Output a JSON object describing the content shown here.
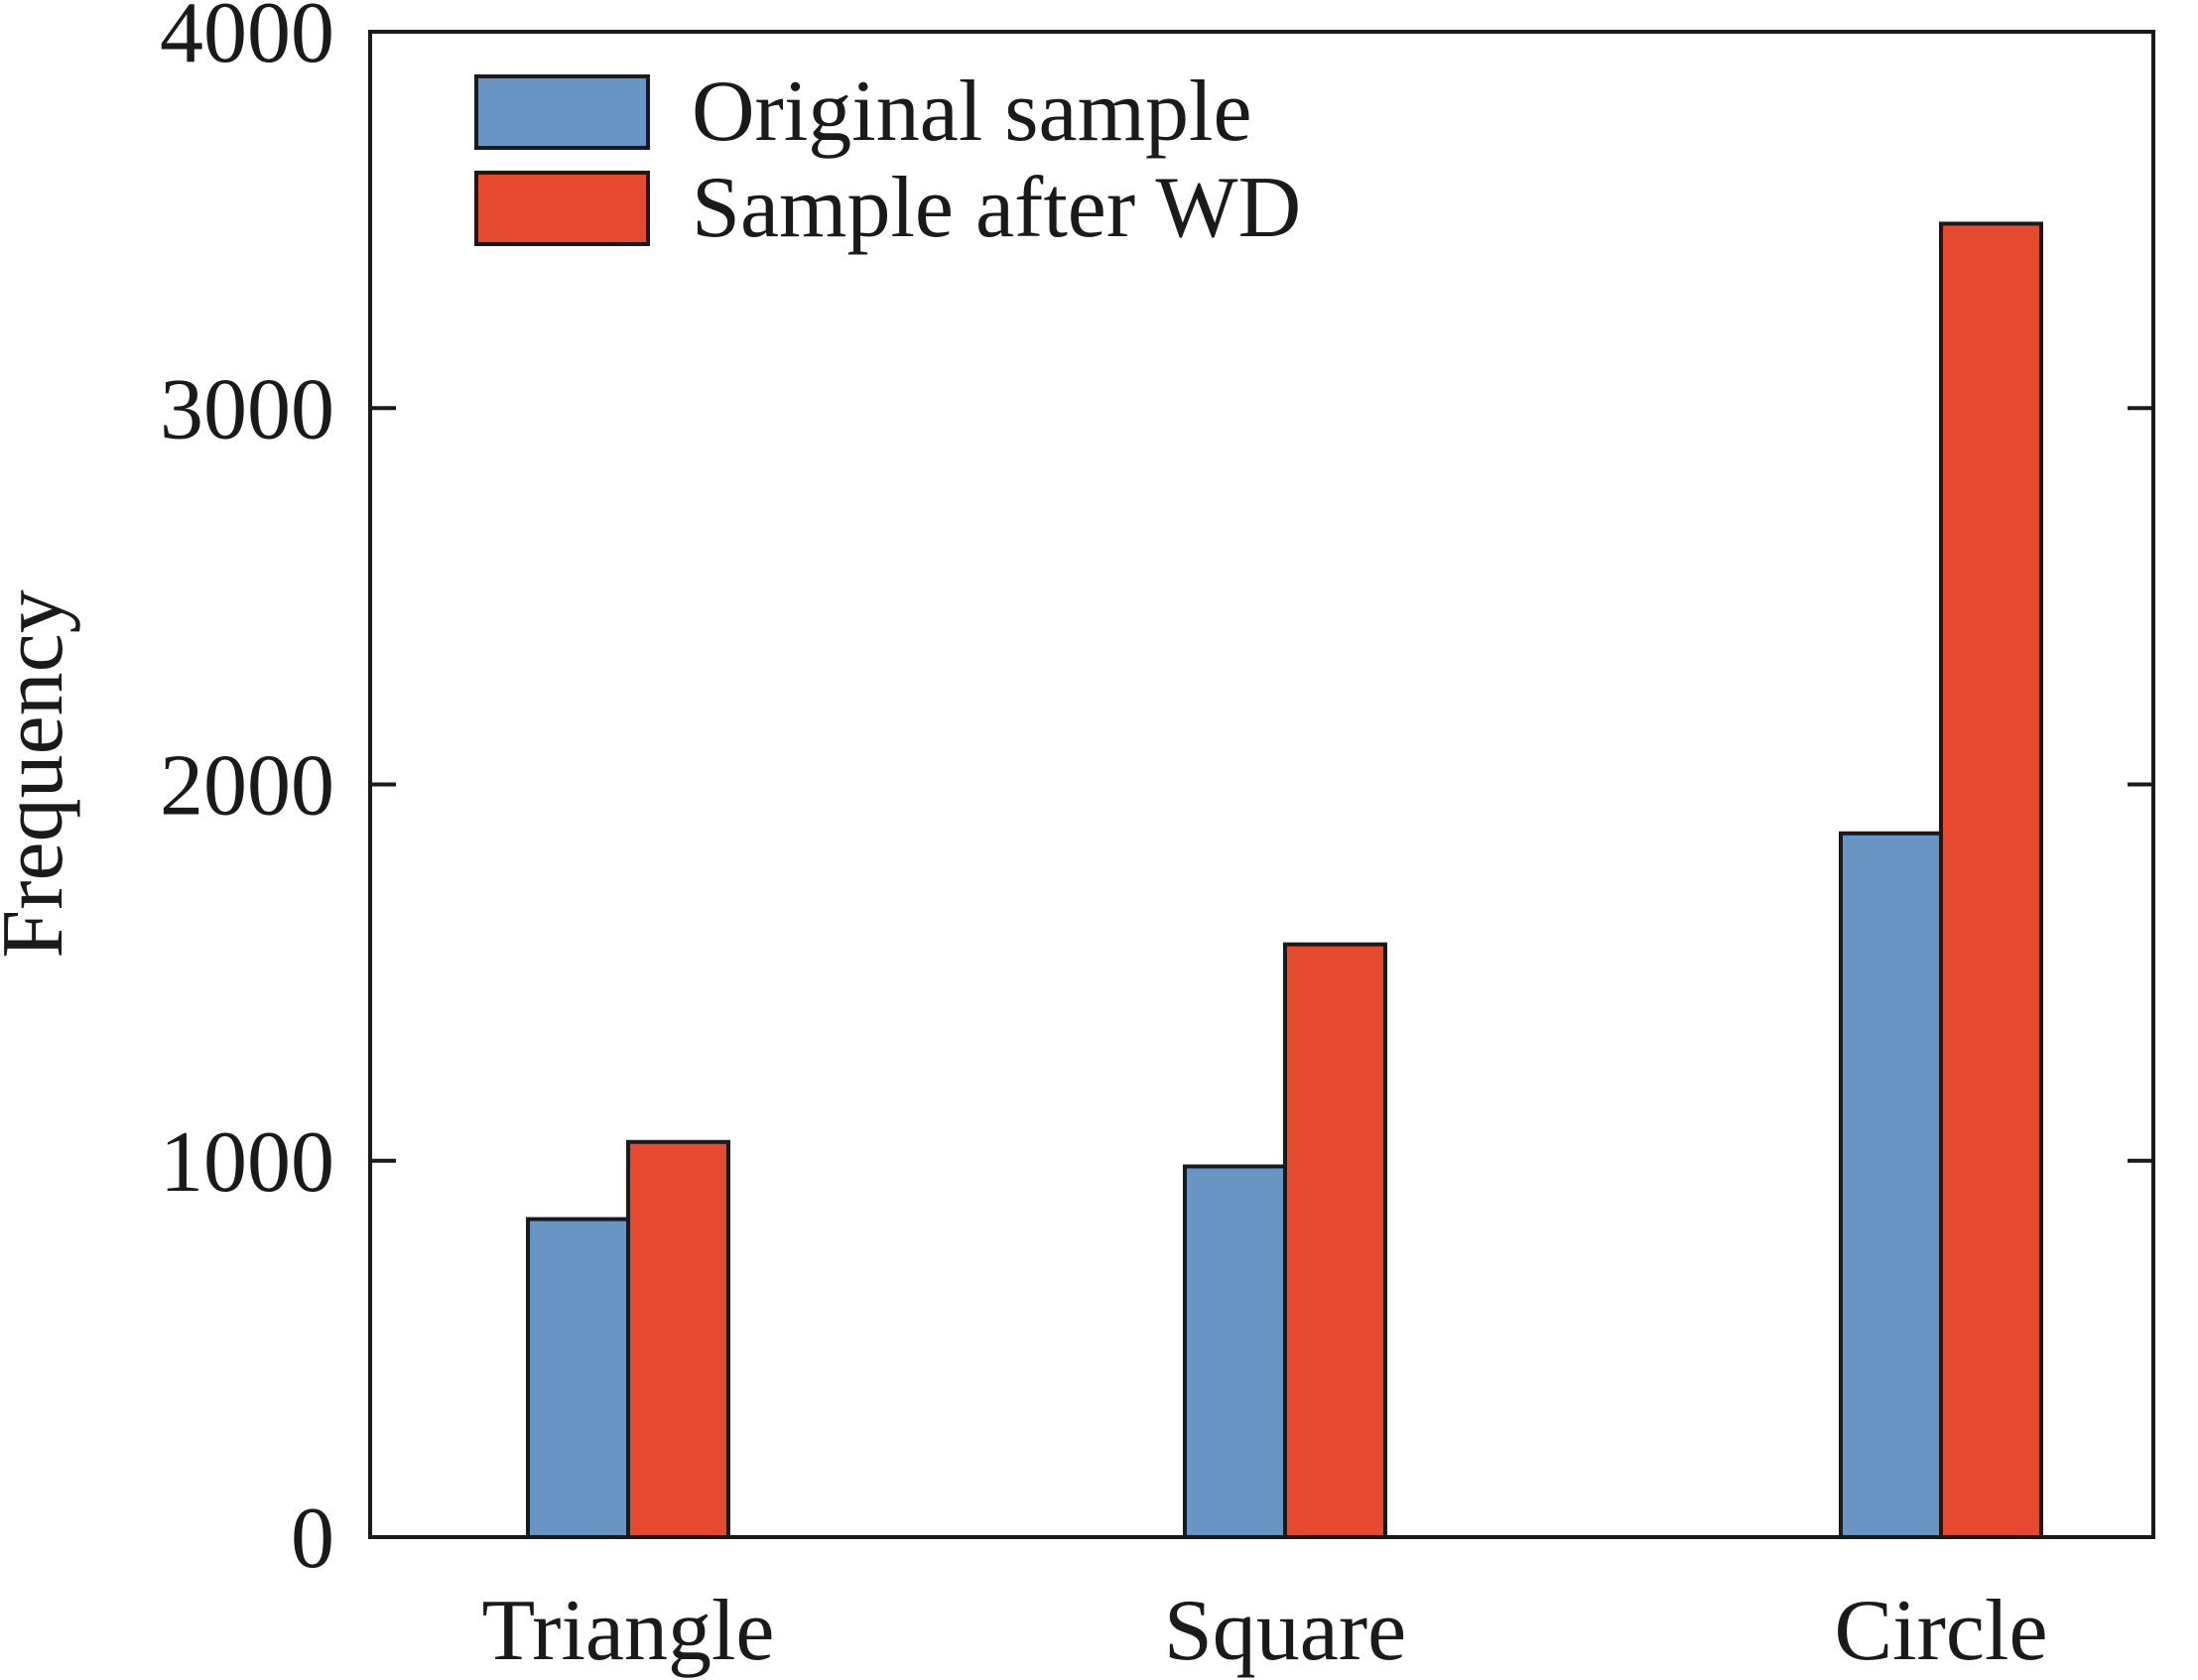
{
  "chart_data": {
    "type": "bar",
    "title": "",
    "xlabel": "",
    "ylabel": "Frequency",
    "categories": [
      "Triangle",
      "Square",
      "Circle"
    ],
    "series": [
      {
        "name": "Original sample",
        "color": "#6895c3",
        "values": [
          845,
          985,
          1870
        ]
      },
      {
        "name": "Sample after WD",
        "color": "#e64a2e",
        "values": [
          1050,
          1575,
          3490
        ]
      }
    ],
    "ylim": [
      0,
      4000
    ],
    "yticks": [
      "0",
      "1000",
      "2000",
      "3000",
      "4000"
    ],
    "grid": false,
    "legend_position": "top-left"
  }
}
